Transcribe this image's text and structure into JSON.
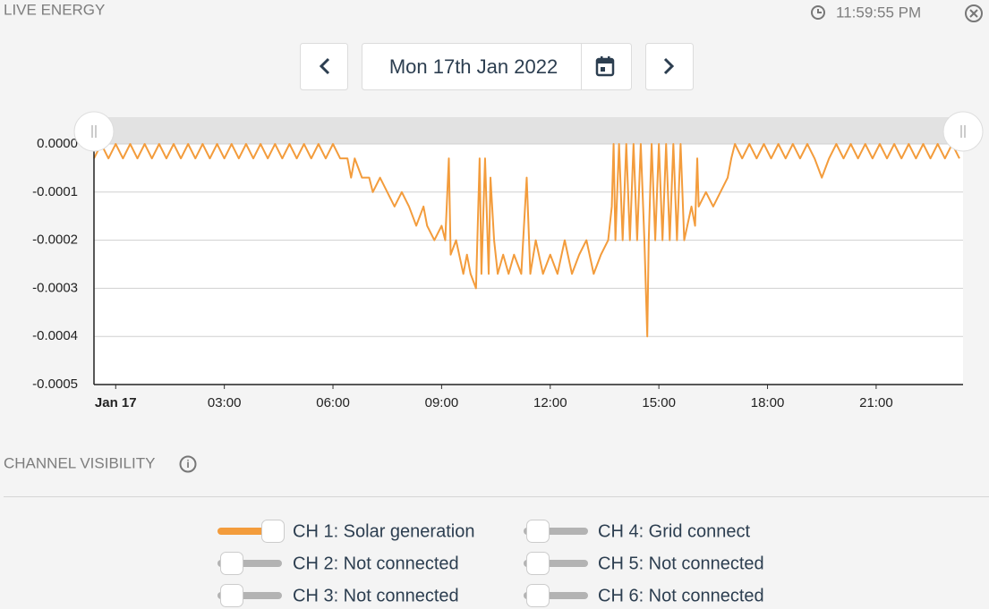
{
  "header": {
    "title": "LIVE ENERGY",
    "time": "11:59:55 PM"
  },
  "date_nav": {
    "date": "Mon 17th Jan 2022"
  },
  "chart_data": {
    "type": "line",
    "color": "#f39c3c",
    "grid": true,
    "xlim": [
      -0.6,
      23.4
    ],
    "xticks": [
      {
        "value": 0,
        "label": "Jan 17"
      },
      {
        "value": 3,
        "label": "03:00"
      },
      {
        "value": 6,
        "label": "06:00"
      },
      {
        "value": 9,
        "label": "09:00"
      },
      {
        "value": 12,
        "label": "12:00"
      },
      {
        "value": 15,
        "label": "15:00"
      },
      {
        "value": 18,
        "label": "18:00"
      },
      {
        "value": 21,
        "label": "21:00"
      }
    ],
    "ylim": [
      -0.0005,
      0
    ],
    "yticks": [
      {
        "value": 0,
        "label": "0.0000"
      },
      {
        "value": -0.0001,
        "label": "-0.0001"
      },
      {
        "value": -0.0002,
        "label": "-0.0002"
      },
      {
        "value": -0.0003,
        "label": "-0.0003"
      },
      {
        "value": -0.0004,
        "label": "-0.0004"
      },
      {
        "value": -0.0005,
        "label": "-0.0005"
      }
    ],
    "x": [
      -0.6,
      -0.4,
      -0.2,
      0,
      0.2,
      0.4,
      0.6,
      0.8,
      1,
      1.2,
      1.4,
      1.6,
      1.8,
      2,
      2.2,
      2.4,
      2.6,
      2.8,
      3,
      3.2,
      3.4,
      3.6,
      3.8,
      4,
      4.2,
      4.4,
      4.6,
      4.8,
      5,
      5.2,
      5.4,
      5.6,
      5.8,
      6,
      6.2,
      6.4,
      6.5,
      6.6,
      6.8,
      7,
      7.1,
      7.3,
      7.5,
      7.7,
      7.9,
      8.1,
      8.3,
      8.5,
      8.6,
      8.8,
      9,
      9.1,
      9.2,
      9.25,
      9.4,
      9.6,
      9.7,
      9.8,
      9.95,
      10.05,
      10.1,
      10.2,
      10.3,
      10.35,
      10.45,
      10.55,
      10.7,
      10.85,
      11,
      11.2,
      11.35,
      11.45,
      11.6,
      11.8,
      12,
      12.2,
      12.4,
      12.6,
      12.8,
      13,
      13.2,
      13.4,
      13.6,
      13.7,
      13.75,
      13.8,
      13.9,
      14,
      14.1,
      14.2,
      14.3,
      14.4,
      14.5,
      14.6,
      14.68,
      14.72,
      14.8,
      14.9,
      15,
      15.1,
      15.2,
      15.3,
      15.4,
      15.5,
      15.6,
      15.7,
      15.9,
      16,
      16.06,
      16.1,
      16.3,
      16.5,
      16.7,
      16.9,
      17,
      17.1,
      17.3,
      17.5,
      17.7,
      17.9,
      18.1,
      18.3,
      18.5,
      18.7,
      18.9,
      19.1,
      19.3,
      19.5,
      19.7,
      19.9,
      20.1,
      20.3,
      20.5,
      20.7,
      20.9,
      21.1,
      21.3,
      21.5,
      21.7,
      21.9,
      22.1,
      22.3,
      22.5,
      22.7,
      22.9,
      23.1,
      23.3
    ],
    "values": [
      -3e-05,
      0,
      -3e-05,
      0,
      -3e-05,
      0,
      -3e-05,
      0,
      -3e-05,
      0,
      -3e-05,
      0,
      -3e-05,
      0,
      -3e-05,
      0,
      -3e-05,
      0,
      -3e-05,
      0,
      -3e-05,
      0,
      -3e-05,
      0,
      -3e-05,
      0,
      -3e-05,
      0,
      -3e-05,
      0,
      -3e-05,
      0,
      -3e-05,
      0,
      -3e-05,
      -3e-05,
      -7e-05,
      -3e-05,
      -7e-05,
      -7e-05,
      -0.0001,
      -7e-05,
      -0.0001,
      -0.00013,
      -0.0001,
      -0.00013,
      -0.00017,
      -0.00013,
      -0.00017,
      -0.0002,
      -0.00017,
      -0.0002,
      -3e-05,
      -0.00023,
      -0.0002,
      -0.00027,
      -0.00023,
      -0.00027,
      -0.0003,
      -3e-05,
      -0.00027,
      -3e-05,
      -0.00027,
      -7e-05,
      -0.0002,
      -0.00027,
      -0.00023,
      -0.00027,
      -0.00023,
      -0.00027,
      -7e-05,
      -0.00027,
      -0.0002,
      -0.00027,
      -0.00023,
      -0.00027,
      -0.0002,
      -0.00027,
      -0.00023,
      -0.0002,
      -0.00027,
      -0.00023,
      -0.0002,
      -0.00013,
      0,
      -0.0002,
      0,
      -0.0002,
      0,
      -0.0002,
      0,
      -0.0002,
      0,
      -0.0002,
      -0.0004,
      -0.0002,
      0,
      -0.0002,
      0,
      -0.0002,
      0,
      -0.0002,
      0,
      -0.0002,
      0,
      -0.0002,
      -0.00013,
      -0.00017,
      -3e-05,
      -0.00013,
      -0.0001,
      -0.00013,
      -0.0001,
      -7e-05,
      -3e-05,
      0,
      -3e-05,
      0,
      -3e-05,
      0,
      -3e-05,
      0,
      -3e-05,
      0,
      -3e-05,
      0,
      -3e-05,
      -7e-05,
      -3e-05,
      0,
      -3e-05,
      0,
      -3e-05,
      0,
      -3e-05,
      0,
      -3e-05,
      0,
      -3e-05,
      0,
      -3e-05,
      0,
      -3e-05,
      0,
      -3e-05,
      0,
      -3e-05
    ]
  },
  "channel_visibility": {
    "title": "CHANNEL VISIBILITY",
    "channels": [
      {
        "label": "CH 1: Solar generation",
        "enabled": true
      },
      {
        "label": "CH 2: Not connected",
        "enabled": false
      },
      {
        "label": "CH 3: Not connected",
        "enabled": false
      },
      {
        "label": "CH 4: Grid connect",
        "enabled": false
      },
      {
        "label": "CH 5: Not connected",
        "enabled": false
      },
      {
        "label": "CH 6: Not connected",
        "enabled": false
      }
    ]
  }
}
